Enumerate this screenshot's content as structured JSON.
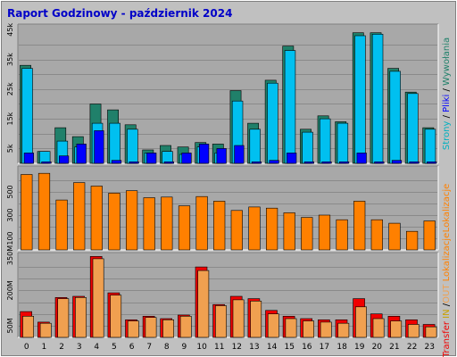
{
  "chart_data": {
    "type": "bar",
    "title": "Raport Godzinowy -  październik 2024",
    "categories": [
      "0",
      "1",
      "2",
      "3",
      "4",
      "5",
      "6",
      "7",
      "8",
      "9",
      "10",
      "11",
      "12",
      "13",
      "14",
      "15",
      "16",
      "17",
      "18",
      "19",
      "20",
      "21",
      "22",
      "23"
    ],
    "colors": {
      "background": "#c0c0c0",
      "plot_background": "#a8a8a8",
      "border_dark": "#808080",
      "border_light": "#ffffff",
      "title": "#0000c8",
      "wywolania": "#20806a",
      "pliki": "#00c0f0",
      "strony": "#0000ff",
      "lokalizacje": "#ff8000",
      "transfer_in": "#f00000",
      "transfer_out": "#f0a050",
      "gridline": "#8a8a8a"
    },
    "panels": [
      {
        "id": "top",
        "side_label_parts": [
          {
            "text": "Strony",
            "color": "#00b0c0"
          },
          {
            "text": " / ",
            "color": "#000000"
          },
          {
            "text": "Pliki",
            "color": "#0000ff"
          },
          {
            "text": " / ",
            "color": "#000000"
          },
          {
            "text": "Wywołania",
            "color": "#20806a"
          }
        ],
        "ylim": [
          0,
          46000
        ],
        "gridlines": [
          5000,
          10000,
          15000,
          20000,
          25000,
          30000,
          35000,
          40000
        ],
        "ytick_labels": [
          {
            "label": "5k",
            "value": 5000
          },
          {
            "label": "15k",
            "value": 15000
          },
          {
            "label": "25k",
            "value": 25000
          },
          {
            "label": "35k",
            "value": 35000
          },
          {
            "label": "45k",
            "value": 45000
          }
        ],
        "series": [
          {
            "name": "Wywołania",
            "values": [
              33000,
              4000,
              12000,
              9000,
              20000,
              18000,
              13000,
              4500,
              6000,
              5500,
              7000,
              6500,
              24500,
              13500,
              28000,
              39500,
              11500,
              16000,
              14000,
              44000,
              44000,
              32000,
              24000,
              12000
            ]
          },
          {
            "name": "Pliki",
            "values": [
              32000,
              4000,
              7500,
              5500,
              13500,
              13500,
              11500,
              3500,
              4000,
              3000,
              5500,
              3500,
              21000,
              11500,
              27000,
              38000,
              10500,
              15000,
              13500,
              43000,
              43500,
              31000,
              23500,
              11500
            ]
          },
          {
            "name": "Strony",
            "values": [
              3500,
              500,
              2500,
              6500,
              11000,
              1000,
              500,
              3500,
              500,
              3500,
              6500,
              5000,
              6000,
              500,
              1000,
              3500,
              500,
              500,
              500,
              3500,
              500,
              1000,
              500,
              500
            ]
          }
        ]
      },
      {
        "id": "middle",
        "side_label_parts": [
          {
            "text": "Lokalizacje",
            "color": "#ff8000"
          }
        ],
        "ylim": [
          0,
          700
        ],
        "gridlines": [
          100,
          200,
          300,
          400,
          500,
          600
        ],
        "ytick_labels": [
          {
            "label": "100",
            "value": 100
          },
          {
            "label": "300",
            "value": 300
          },
          {
            "label": "500",
            "value": 500
          }
        ],
        "series": [
          {
            "name": "Lokalizacje",
            "values": [
              650,
              660,
              430,
              580,
              550,
              490,
              510,
              450,
              455,
              380,
              460,
              420,
              340,
              370,
              360,
              320,
              280,
              300,
              260,
              420,
              260,
              230,
              160,
              250
            ]
          }
        ]
      },
      {
        "id": "bottom",
        "side_label_parts": [
          {
            "text": "Transfer",
            "color": "#f00000"
          },
          {
            "text": " IN ",
            "color": "#c8a000"
          },
          {
            "text": "/",
            "color": "#000000"
          },
          {
            "text": "OUT",
            "color": "#f0a050"
          },
          {
            "text": " Lokalizacje",
            "color": "#ff8000"
          }
        ],
        "ylim": [
          0,
          350000000
        ],
        "gridlines": [
          50000000,
          100000000,
          150000000,
          200000000,
          250000000,
          300000000
        ],
        "ytick_labels": [
          {
            "label": "50M",
            "value": 50000000
          },
          {
            "label": "200M",
            "value": 200000000
          },
          {
            "label": "350M",
            "value": 350000000
          }
        ],
        "series": [
          {
            "name": "IN",
            "values": [
              110000000,
              65000000,
              170000000,
              175000000,
              345000000,
              190000000,
              75000000,
              90000000,
              80000000,
              95000000,
              300000000,
              140000000,
              175000000,
              165000000,
              115000000,
              90000000,
              80000000,
              75000000,
              75000000,
              165000000,
              100000000,
              90000000,
              75000000,
              55000000
            ]
          },
          {
            "name": "OUT",
            "values": [
              90000000,
              60000000,
              165000000,
              170000000,
              335000000,
              180000000,
              70000000,
              85000000,
              75000000,
              90000000,
              285000000,
              135000000,
              160000000,
              155000000,
              100000000,
              80000000,
              70000000,
              65000000,
              60000000,
              130000000,
              80000000,
              70000000,
              55000000,
              45000000
            ]
          }
        ]
      }
    ]
  }
}
